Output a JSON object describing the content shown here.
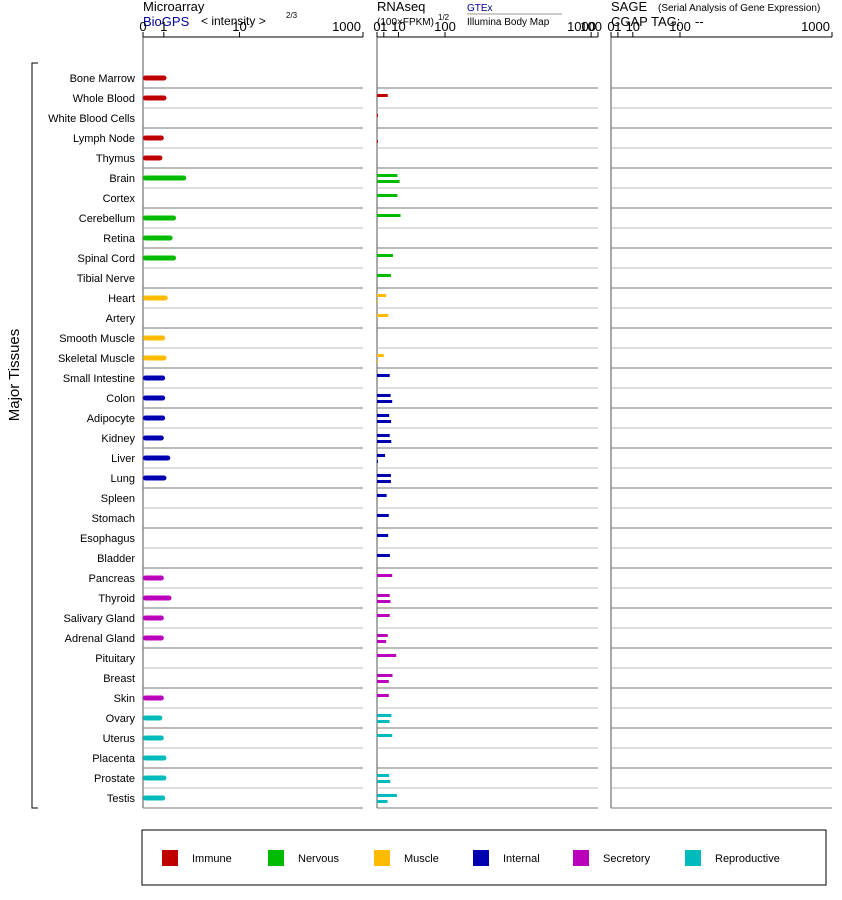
{
  "header": {
    "microarray_title": "Microarray",
    "microarray_source": "BioGPS",
    "microarray_unit": "< intensity >",
    "microarray_exp": "2/3",
    "rnaseq_title": "RNAseq",
    "rnaseq_unit": "(100×FPKM)",
    "rnaseq_exp": "1/2",
    "rnaseq_source_a": "GTEx",
    "rnaseq_source_b": "Illumina Body Map",
    "sage_title": "SAGE",
    "sage_subtitle": "(Serial Analysis of Gene Expression)",
    "sage_tag_label": "CGAP TAG:",
    "sage_tag_value": "--"
  },
  "colors": {
    "Immune": "#c00000",
    "Nervous": "#00bb00",
    "Muscle": "#ffbb00",
    "Internal": "#0000b0",
    "Secretory": "#bb00bb",
    "Reproductive": "#00bbbb"
  },
  "chart_data": {
    "type": "bar",
    "ylabel": "Major Tissues",
    "axis_ticks": [
      "0",
      "1",
      "10",
      "100",
      "1000"
    ],
    "tick_values": [
      0,
      1,
      10,
      100,
      1000
    ],
    "scale": "power-law (tick positions follow the power transform of each panel)",
    "legend": [
      {
        "name": "Immune",
        "color": "#c00000"
      },
      {
        "name": "Nervous",
        "color": "#00bb00"
      },
      {
        "name": "Muscle",
        "color": "#ffbb00"
      },
      {
        "name": "Internal",
        "color": "#0000b0"
      },
      {
        "name": "Secretory",
        "color": "#bb00bb"
      },
      {
        "name": "Reproductive",
        "color": "#00bbbb"
      }
    ],
    "tissues": [
      {
        "name": "Bone Marrow",
        "system": "Immune",
        "microarray": 1.2,
        "gtex": null,
        "ibm": null
      },
      {
        "name": "Whole Blood",
        "system": "Immune",
        "microarray": 1.2,
        "gtex": 2.5,
        "ibm": null
      },
      {
        "name": "White Blood Cells",
        "system": "Immune",
        "microarray": null,
        "gtex": 0.003,
        "ibm": null
      },
      {
        "name": "Lymph Node",
        "system": "Immune",
        "microarray": 1.0,
        "gtex": null,
        "ibm": 0.003
      },
      {
        "name": "Thymus",
        "system": "Immune",
        "microarray": 0.9,
        "gtex": null,
        "ibm": null
      },
      {
        "name": "Brain",
        "system": "Nervous",
        "microarray": 3.0,
        "gtex": 9.0,
        "ibm": 11.0
      },
      {
        "name": "Cortex",
        "system": "Nervous",
        "microarray": null,
        "gtex": 9.0,
        "ibm": null
      },
      {
        "name": "Cerebellum",
        "system": "Nervous",
        "microarray": 2.0,
        "gtex": 12.0,
        "ibm": null
      },
      {
        "name": "Retina",
        "system": "Nervous",
        "microarray": 1.7,
        "gtex": null,
        "ibm": null
      },
      {
        "name": "Spinal Cord",
        "system": "Nervous",
        "microarray": 2.0,
        "gtex": 5.5,
        "ibm": null
      },
      {
        "name": "Tibial Nerve",
        "system": "Nervous",
        "microarray": null,
        "gtex": 4.2,
        "ibm": null
      },
      {
        "name": "Heart",
        "system": "Muscle",
        "microarray": 1.3,
        "gtex": 1.8,
        "ibm": 0.003
      },
      {
        "name": "Artery",
        "system": "Muscle",
        "microarray": null,
        "gtex": 2.8,
        "ibm": null
      },
      {
        "name": "Smooth Muscle",
        "system": "Muscle",
        "microarray": 1.1,
        "gtex": null,
        "ibm": null
      },
      {
        "name": "Skeletal Muscle",
        "system": "Muscle",
        "microarray": 1.2,
        "gtex": 1.0,
        "ibm": 0.003
      },
      {
        "name": "Small Intestine",
        "system": "Internal",
        "microarray": 1.1,
        "gtex": 3.5,
        "ibm": null
      },
      {
        "name": "Colon",
        "system": "Internal",
        "microarray": 1.1,
        "gtex": 4.0,
        "ibm": 5.0
      },
      {
        "name": "Adipocyte",
        "system": "Internal",
        "microarray": 1.1,
        "gtex": 3.2,
        "ibm": 4.3
      },
      {
        "name": "Kidney",
        "system": "Internal",
        "microarray": 1.0,
        "gtex": 3.5,
        "ibm": 4.4
      },
      {
        "name": "Liver",
        "system": "Internal",
        "microarray": 1.5,
        "gtex": 1.4,
        "ibm": 0.003
      },
      {
        "name": "Lung",
        "system": "Internal",
        "microarray": 1.2,
        "gtex": 4.2,
        "ibm": 4.2
      },
      {
        "name": "Spleen",
        "system": "Internal",
        "microarray": null,
        "gtex": 2.0,
        "ibm": null
      },
      {
        "name": "Stomach",
        "system": "Internal",
        "microarray": null,
        "gtex": 3.0,
        "ibm": null
      },
      {
        "name": "Esophagus",
        "system": "Internal",
        "microarray": null,
        "gtex": 2.7,
        "ibm": null
      },
      {
        "name": "Bladder",
        "system": "Internal",
        "microarray": null,
        "gtex": 3.6,
        "ibm": null
      },
      {
        "name": "Pancreas",
        "system": "Secretory",
        "microarray": 1.0,
        "gtex": 5.0,
        "ibm": null
      },
      {
        "name": "Thyroid",
        "system": "Secretory",
        "microarray": 1.6,
        "gtex": 3.5,
        "ibm": 3.9
      },
      {
        "name": "Salivary Gland",
        "system": "Secretory",
        "microarray": 1.0,
        "gtex": 3.5,
        "ibm": null
      },
      {
        "name": "Adrenal Gland",
        "system": "Secretory",
        "microarray": 1.0,
        "gtex": 2.5,
        "ibm": 1.8
      },
      {
        "name": "Pituitary",
        "system": "Secretory",
        "microarray": null,
        "gtex": 8.0,
        "ibm": null
      },
      {
        "name": "Breast",
        "system": "Secretory",
        "microarray": null,
        "gtex": 5.2,
        "ibm": 3.0
      },
      {
        "name": "Skin",
        "system": "Secretory",
        "microarray": 1.0,
        "gtex": 3.0,
        "ibm": null
      },
      {
        "name": "Ovary",
        "system": "Reproductive",
        "microarray": 0.9,
        "gtex": 4.5,
        "ibm": 3.4
      },
      {
        "name": "Uterus",
        "system": "Reproductive",
        "microarray": 1.0,
        "gtex": 5.0,
        "ibm": null
      },
      {
        "name": "Placenta",
        "system": "Reproductive",
        "microarray": 1.2,
        "gtex": null,
        "ibm": null
      },
      {
        "name": "Prostate",
        "system": "Reproductive",
        "microarray": 1.2,
        "gtex": 3.2,
        "ibm": 3.8
      },
      {
        "name": "Testis",
        "system": "Reproductive",
        "microarray": 1.1,
        "gtex": 8.5,
        "ibm": 2.4
      }
    ]
  }
}
